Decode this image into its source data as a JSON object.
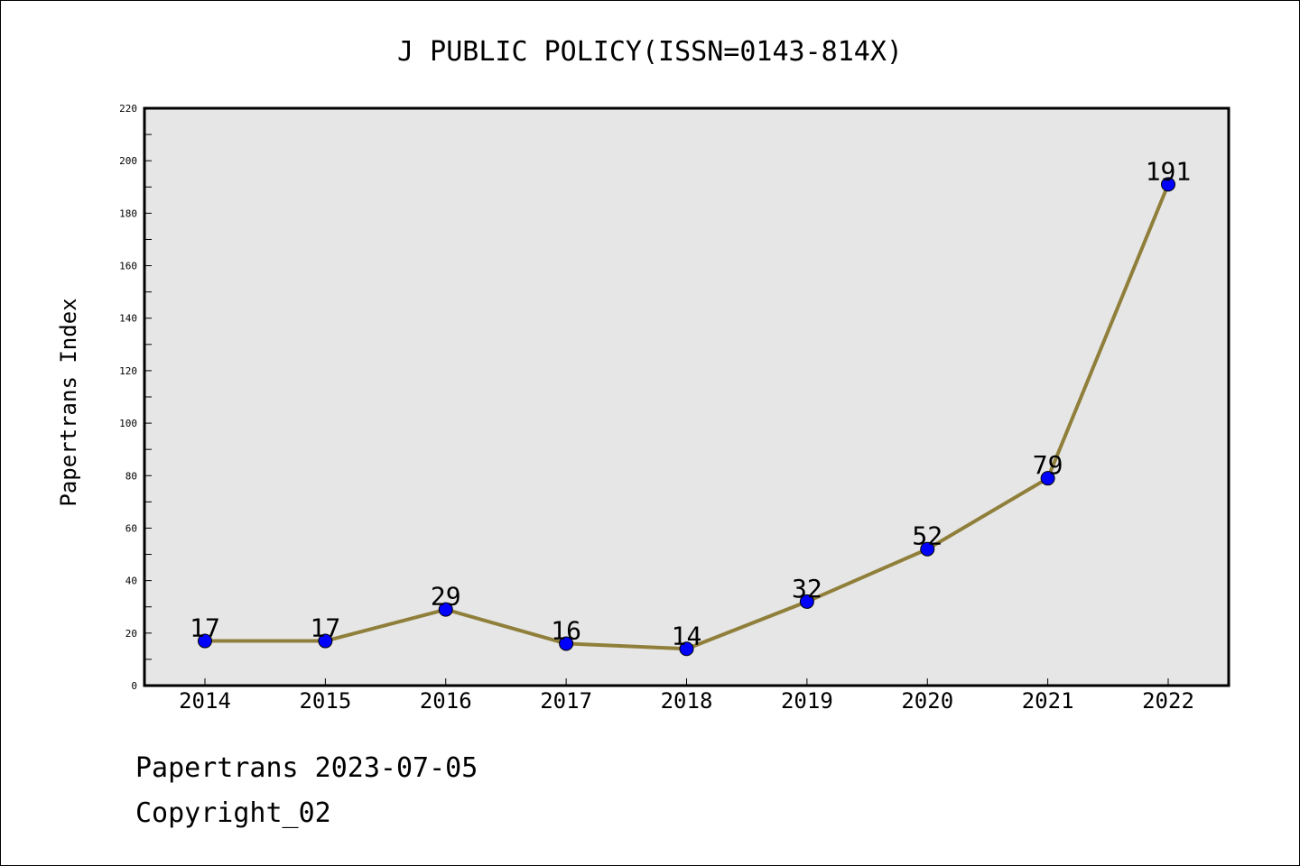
{
  "chart_data": {
    "type": "line",
    "title": "J PUBLIC POLICY(ISSN=0143-814X)",
    "xlabel": "",
    "ylabel": "Papertrans Index",
    "categories": [
      "2014",
      "2015",
      "2016",
      "2017",
      "2018",
      "2019",
      "2020",
      "2021",
      "2022"
    ],
    "values": [
      17,
      17,
      29,
      16,
      14,
      32,
      52,
      79,
      191
    ],
    "data_labels": [
      "17",
      "17",
      "29",
      "16",
      "14",
      "32",
      "52",
      "79",
      "191"
    ],
    "ylim": [
      0,
      220
    ],
    "yticks": [
      0,
      20,
      40,
      60,
      80,
      100,
      120,
      140,
      160,
      180,
      200,
      220
    ],
    "ytick_labels": [
      "0",
      "20",
      "40",
      "60",
      "80",
      "100",
      "120",
      "140",
      "160",
      "180",
      "200",
      "220"
    ],
    "grid": false,
    "legend": "none",
    "colors": {
      "line": "#8f7f3a",
      "marker": "#0000ff",
      "plot_background": "#e6e6e6"
    }
  },
  "footer": {
    "line1": "Papertrans 2023-07-05",
    "line2": "Copyright_02"
  }
}
